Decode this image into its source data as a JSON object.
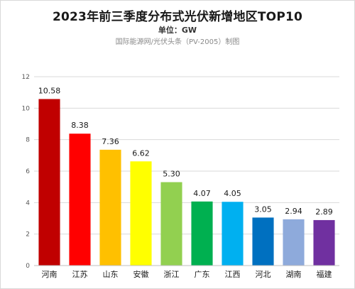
{
  "chart_data": {
    "type": "bar",
    "title": "2023年前三季度分布式光伏新增地区TOP10",
    "subtitle": "单位：GW",
    "source": "国际能源网/光伏头条（PV-2005）制图",
    "categories": [
      "河南",
      "江苏",
      "山东",
      "安徽",
      "浙江",
      "广东",
      "江西",
      "河北",
      "湖南",
      "福建"
    ],
    "values": [
      10.58,
      8.38,
      7.36,
      6.62,
      5.3,
      4.07,
      4.05,
      3.05,
      2.94,
      2.89
    ],
    "value_labels": [
      "10.58",
      "8.38",
      "7.36",
      "6.62",
      "5.30",
      "4.07",
      "4.05",
      "3.05",
      "2.94",
      "2.89"
    ],
    "colors": [
      "#c00000",
      "#ff0000",
      "#ffc000",
      "#ffff00",
      "#92d050",
      "#00b050",
      "#00b0f0",
      "#0070c0",
      "#8eaadb",
      "#7030a0"
    ],
    "ylim": [
      0,
      12
    ],
    "yticks": [
      0,
      2,
      4,
      6,
      8,
      10,
      12
    ],
    "grid": true,
    "legend": "none"
  }
}
